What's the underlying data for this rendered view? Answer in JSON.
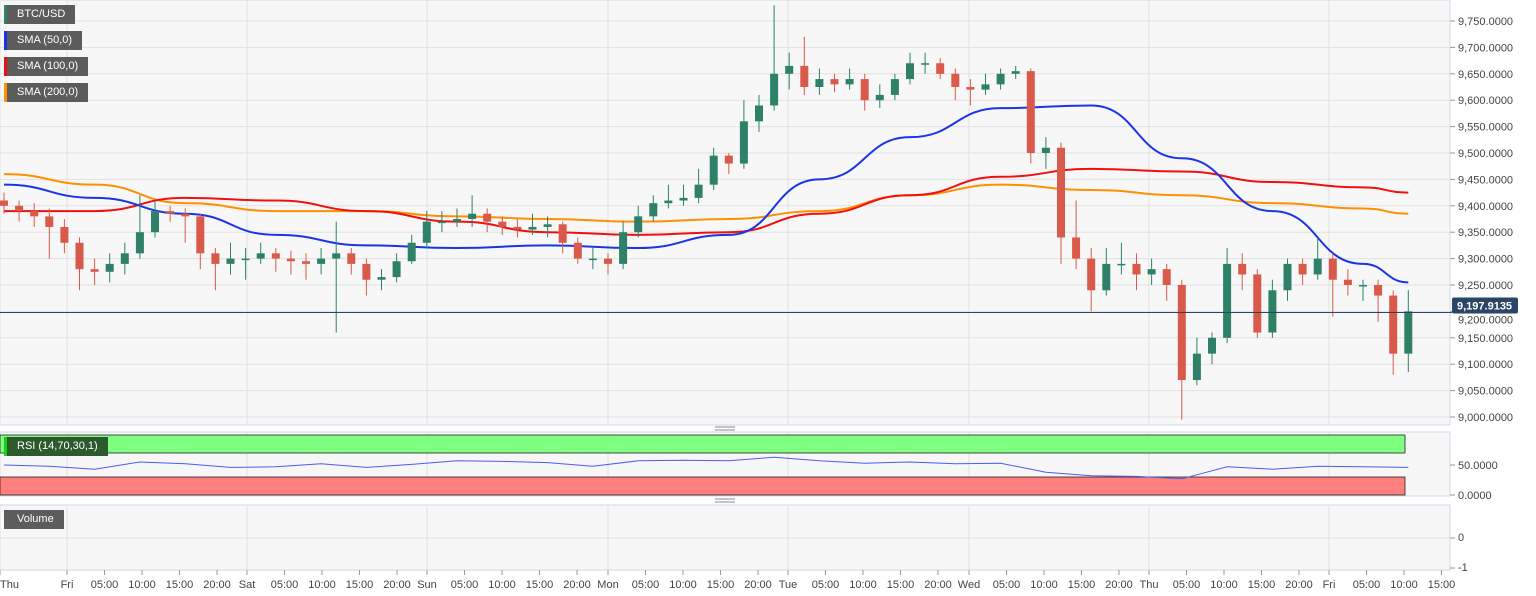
{
  "legends": {
    "main": "BTC/USD",
    "sma50": "SMA (50,0)",
    "sma100": "SMA (100,0)",
    "sma200": "SMA (200,0)",
    "rsi": "RSI (14,70,30,1)",
    "volume": "Volume"
  },
  "colors": {
    "up": "#2e8069",
    "down": "#d9594a",
    "sma50": "#1a35e8",
    "sma100": "#f01010",
    "sma200": "#ff9000",
    "rsi_line": "#4a5ef0",
    "rsi_overbought": "#7fff7f",
    "rsi_oversold": "#ff7f7f",
    "price_tag": "#2b4566"
  },
  "chart_data": {
    "type": "candlestick",
    "symbol": "BTC/USD",
    "interval_hours": 2,
    "x_tick_labels": [
      "Thu",
      "Fri",
      "05:00",
      "10:00",
      "15:00",
      "20:00",
      "Sat",
      "05:00",
      "10:00",
      "15:00",
      "20:00",
      "Sun",
      "05:00",
      "10:00",
      "15:00",
      "20:00",
      "Mon",
      "05:00",
      "10:00",
      "15:00",
      "20:00",
      "Tue",
      "05:00",
      "10:00",
      "15:00",
      "20:00",
      "Wed",
      "05:00",
      "10:00",
      "15:00",
      "20:00",
      "Thu",
      "05:00",
      "10:00",
      "15:00",
      "20:00",
      "Fri",
      "05:00",
      "10:00",
      "15:00"
    ],
    "y_ticks": [
      "9,750.0000",
      "9,700.0000",
      "9,650.0000",
      "9,600.0000",
      "9,550.0000",
      "9,500.0000",
      "9,450.0000",
      "9,400.0000",
      "9,350.0000",
      "9,300.0000",
      "9,250.0000",
      "9,200.0000",
      "9,150.0000",
      "9,100.0000",
      "9,050.0000",
      "9,000.0000"
    ],
    "ylim": [
      8990,
      9790
    ],
    "last_price": "9,197.9135",
    "last_price_value": 9197.9135,
    "ohlc": [
      [
        9410,
        9425,
        9385,
        9400
      ],
      [
        9400,
        9410,
        9370,
        9390
      ],
      [
        9390,
        9405,
        9360,
        9380
      ],
      [
        9380,
        9395,
        9300,
        9360
      ],
      [
        9360,
        9375,
        9310,
        9330
      ],
      [
        9330,
        9340,
        9240,
        9280
      ],
      [
        9280,
        9300,
        9250,
        9275
      ],
      [
        9275,
        9310,
        9255,
        9290
      ],
      [
        9290,
        9330,
        9270,
        9310
      ],
      [
        9310,
        9420,
        9300,
        9350
      ],
      [
        9350,
        9410,
        9340,
        9390
      ],
      [
        9390,
        9400,
        9370,
        9385
      ],
      [
        9385,
        9395,
        9330,
        9380
      ],
      [
        9380,
        9385,
        9280,
        9310
      ],
      [
        9310,
        9320,
        9240,
        9290
      ],
      [
        9290,
        9330,
        9270,
        9300
      ],
      [
        9300,
        9320,
        9260,
        9300
      ],
      [
        9300,
        9330,
        9290,
        9310
      ],
      [
        9310,
        9320,
        9275,
        9300
      ],
      [
        9300,
        9315,
        9270,
        9295
      ],
      [
        9295,
        9310,
        9260,
        9290
      ],
      [
        9290,
        9320,
        9270,
        9300
      ],
      [
        9300,
        9370,
        9160,
        9310
      ],
      [
        9310,
        9320,
        9270,
        9290
      ],
      [
        9290,
        9300,
        9230,
        9260
      ],
      [
        9260,
        9280,
        9240,
        9265
      ],
      [
        9265,
        9310,
        9255,
        9295
      ],
      [
        9295,
        9345,
        9290,
        9330
      ],
      [
        9330,
        9390,
        9320,
        9370
      ],
      [
        9370,
        9390,
        9350,
        9370
      ],
      [
        9370,
        9395,
        9360,
        9375
      ],
      [
        9375,
        9420,
        9360,
        9385
      ],
      [
        9385,
        9395,
        9350,
        9370
      ],
      [
        9370,
        9380,
        9345,
        9360
      ],
      [
        9360,
        9375,
        9340,
        9355
      ],
      [
        9355,
        9385,
        9345,
        9360
      ],
      [
        9360,
        9380,
        9340,
        9365
      ],
      [
        9365,
        9370,
        9310,
        9330
      ],
      [
        9330,
        9340,
        9290,
        9300
      ],
      [
        9300,
        9320,
        9280,
        9300
      ],
      [
        9300,
        9310,
        9270,
        9290
      ],
      [
        9290,
        9370,
        9280,
        9350
      ],
      [
        9350,
        9400,
        9340,
        9380
      ],
      [
        9380,
        9420,
        9370,
        9405
      ],
      [
        9405,
        9440,
        9395,
        9410
      ],
      [
        9410,
        9440,
        9400,
        9415
      ],
      [
        9415,
        9470,
        9405,
        9440
      ],
      [
        9440,
        9510,
        9430,
        9495
      ],
      [
        9495,
        9500,
        9460,
        9480
      ],
      [
        9480,
        9600,
        9470,
        9560
      ],
      [
        9560,
        9610,
        9540,
        9590
      ],
      [
        9590,
        9780,
        9580,
        9650
      ],
      [
        9650,
        9690,
        9620,
        9665
      ],
      [
        9665,
        9720,
        9610,
        9625
      ],
      [
        9625,
        9660,
        9610,
        9640
      ],
      [
        9640,
        9650,
        9615,
        9630
      ],
      [
        9630,
        9660,
        9620,
        9640
      ],
      [
        9640,
        9650,
        9580,
        9600
      ],
      [
        9600,
        9630,
        9585,
        9610
      ],
      [
        9610,
        9650,
        9600,
        9640
      ],
      [
        9640,
        9690,
        9630,
        9670
      ],
      [
        9670,
        9690,
        9650,
        9670
      ],
      [
        9670,
        9680,
        9640,
        9650
      ],
      [
        9650,
        9660,
        9600,
        9625
      ],
      [
        9625,
        9640,
        9590,
        9620
      ],
      [
        9620,
        9650,
        9610,
        9630
      ],
      [
        9630,
        9660,
        9620,
        9650
      ],
      [
        9650,
        9665,
        9640,
        9655
      ],
      [
        9655,
        9660,
        9480,
        9500
      ],
      [
        9500,
        9530,
        9470,
        9510
      ],
      [
        9510,
        9520,
        9290,
        9340
      ],
      [
        9340,
        9410,
        9280,
        9300
      ],
      [
        9300,
        9320,
        9200,
        9240
      ],
      [
        9240,
        9320,
        9230,
        9290
      ],
      [
        9290,
        9330,
        9270,
        9290
      ],
      [
        9290,
        9310,
        9240,
        9270
      ],
      [
        9270,
        9300,
        9250,
        9280
      ],
      [
        9280,
        9290,
        9220,
        9250
      ],
      [
        9250,
        9260,
        8995,
        9070
      ],
      [
        9070,
        9150,
        9060,
        9120
      ],
      [
        9120,
        9160,
        9100,
        9150
      ],
      [
        9150,
        9320,
        9140,
        9290
      ],
      [
        9290,
        9310,
        9240,
        9270
      ],
      [
        9270,
        9280,
        9150,
        9160
      ],
      [
        9160,
        9260,
        9150,
        9240
      ],
      [
        9240,
        9300,
        9220,
        9290
      ],
      [
        9290,
        9300,
        9250,
        9270
      ],
      [
        9270,
        9340,
        9260,
        9300
      ],
      [
        9300,
        9310,
        9190,
        9260
      ],
      [
        9260,
        9280,
        9230,
        9250
      ],
      [
        9250,
        9260,
        9220,
        9250
      ],
      [
        9250,
        9260,
        9180,
        9230
      ],
      [
        9230,
        9240,
        9080,
        9120
      ],
      [
        9120,
        9240,
        9085,
        9200
      ]
    ],
    "sma_candle_index": [
      0,
      6,
      12,
      18,
      24,
      30,
      36,
      42,
      48,
      54,
      60,
      66,
      72,
      78,
      84,
      90,
      93
    ],
    "sma50": [
      9440,
      9415,
      9385,
      9345,
      9325,
      9320,
      9325,
      9320,
      9345,
      9450,
      9530,
      9585,
      9590,
      9490,
      9390,
      9290,
      9255
    ],
    "sma100": [
      9390,
      9390,
      9415,
      9410,
      9390,
      9370,
      9350,
      9345,
      9350,
      9385,
      9420,
      9455,
      9470,
      9465,
      9445,
      9435,
      9425
    ],
    "sma200": [
      9460,
      9440,
      9405,
      9390,
      9390,
      9380,
      9375,
      9370,
      9375,
      9390,
      9420,
      9440,
      9430,
      9420,
      9405,
      9395,
      9385
    ],
    "rsi": {
      "candle_index": [
        0,
        3,
        6,
        9,
        12,
        15,
        18,
        21,
        24,
        27,
        30,
        33,
        36,
        39,
        42,
        45,
        48,
        51,
        54,
        57,
        60,
        63,
        66,
        69,
        72,
        75,
        78,
        81,
        84,
        87,
        90,
        93
      ],
      "values": [
        50,
        48,
        43,
        55,
        52,
        46,
        47,
        52,
        46,
        51,
        57,
        56,
        54,
        48,
        57,
        58,
        57,
        63,
        57,
        53,
        55,
        52,
        53,
        38,
        32,
        31,
        27,
        47,
        43,
        48,
        47,
        46
      ],
      "overbought": 70,
      "oversold": 30,
      "y_ticks": [
        "50.0000",
        "0.0000"
      ]
    },
    "volume": {
      "y_ticks": [
        "0",
        "-1"
      ]
    }
  }
}
